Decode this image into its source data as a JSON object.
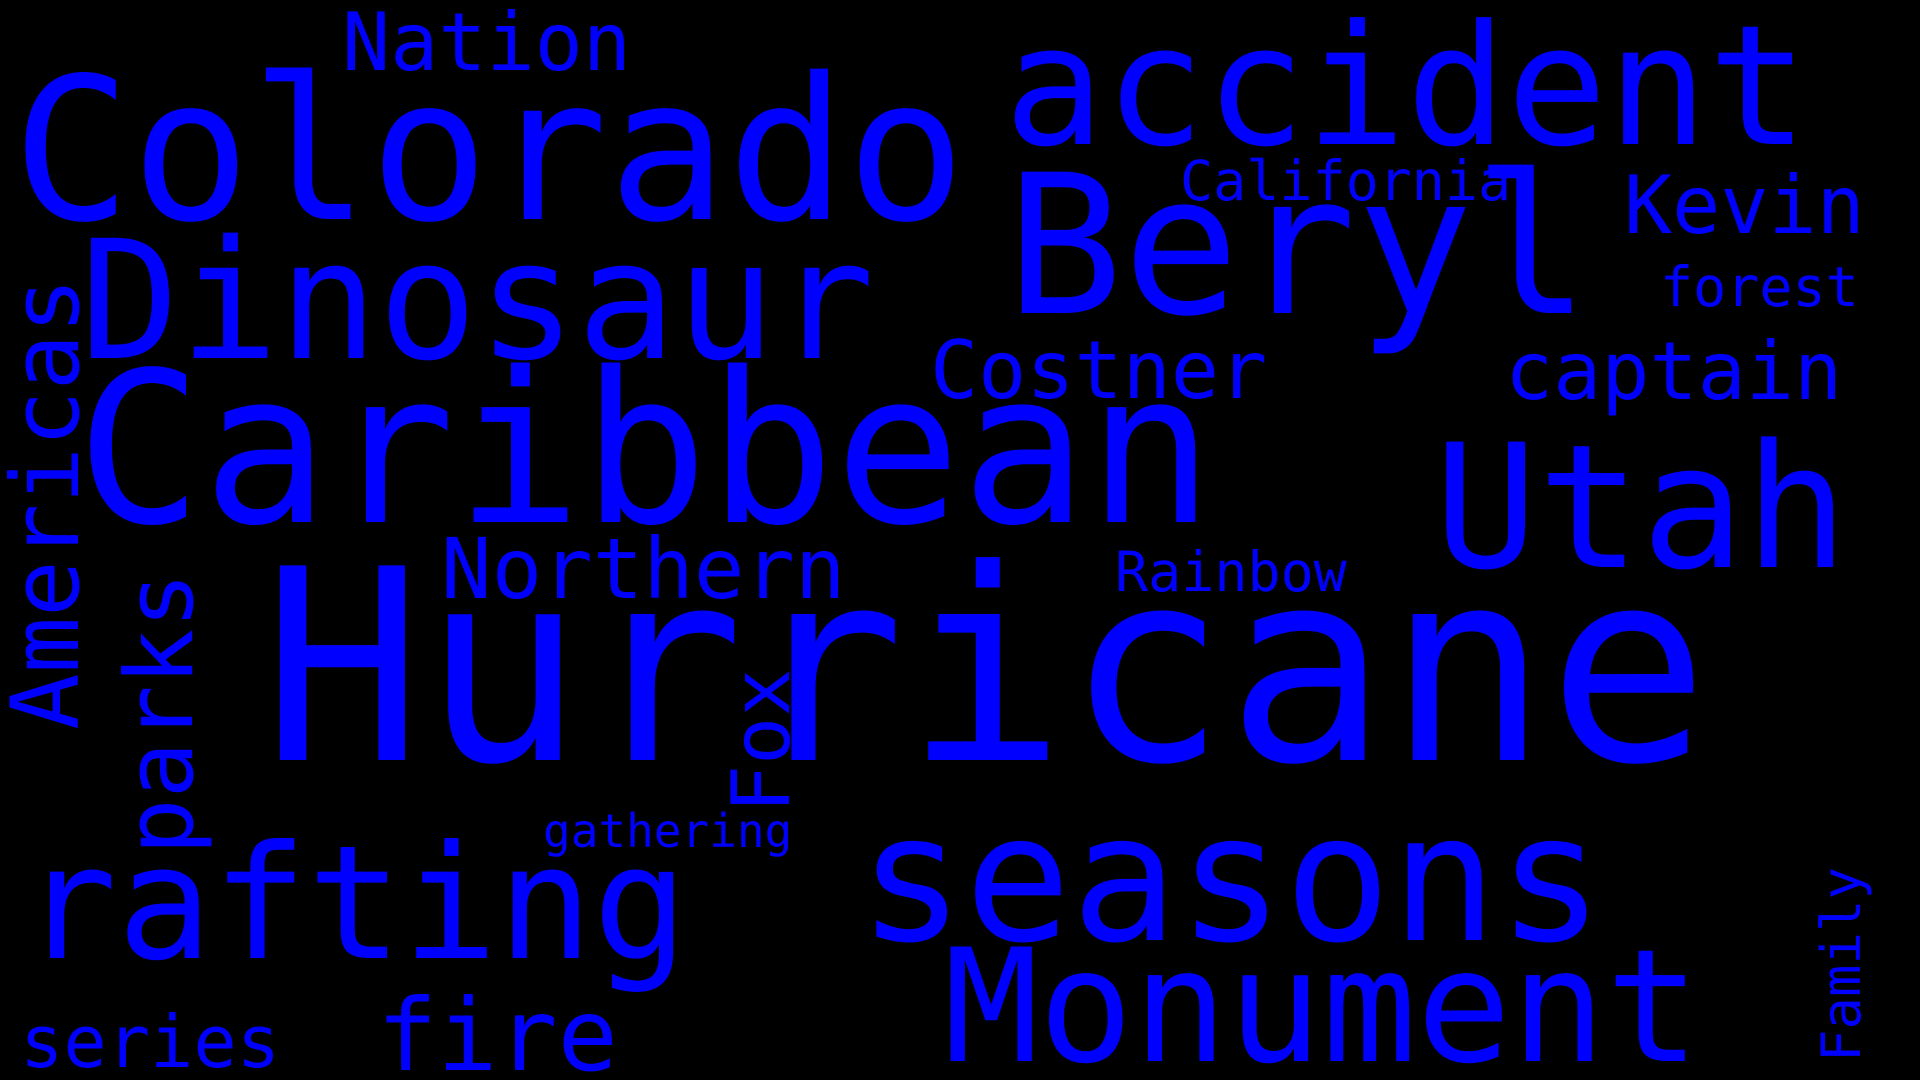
{
  "cloud": {
    "background": "#000000",
    "color": "#0000FF",
    "words": {
      "hurricane": "Hurricane",
      "caribbean": "Caribbean",
      "colorado": "Colorado",
      "beryl": "Beryl",
      "accident": "accident",
      "dinosaur": "Dinosaur",
      "seasons": "seasons",
      "rafting": "rafting",
      "monument": "Monument",
      "utah": "Utah",
      "fire": "fire",
      "americas": "Americas",
      "parks": "parks",
      "northern": "Northern",
      "costner": "Costner",
      "captain": "captain",
      "kevin": "Kevin",
      "nation": "Nation",
      "fox": "Fox",
      "series": "series",
      "california": "California",
      "rainbow": "Rainbow",
      "forest": "forest",
      "gathering": "gathering",
      "family": "Family"
    }
  }
}
